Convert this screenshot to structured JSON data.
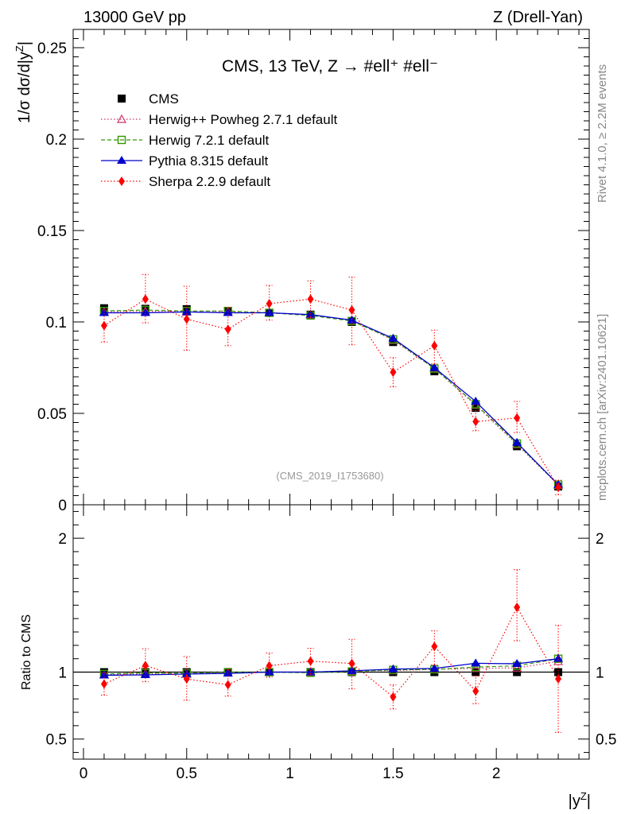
{
  "header": {
    "left": "13000 GeV pp",
    "right": "Z (Drell-Yan)"
  },
  "side": {
    "rivet": "Rivet 4.1.0, ≥ 2.2M events",
    "mcplots": "mcplots.cern.ch [arXiv:2401.10621]"
  },
  "chart_data": {
    "type": "scatter",
    "title": "CMS, 13 TeV, Z →  #ell⁺ #ell⁻",
    "analysis_id": "(CMS_2019_I1753680)",
    "xlabel": "|y^Z|",
    "ylabel": "1/σ dσ/d|y^Z|",
    "ratio_ylabel": "Ratio to CMS",
    "xlim": [
      -0.05,
      2.45
    ],
    "ylim": [
      0,
      0.26
    ],
    "ratio_ylim": [
      0.35,
      2.25
    ],
    "x_ticks": [
      {
        "v": 0,
        "label": "0"
      },
      {
        "v": 0.5,
        "label": "0.5"
      },
      {
        "v": 1,
        "label": "1"
      },
      {
        "v": 1.5,
        "label": "1.5"
      },
      {
        "v": 2,
        "label": "2"
      }
    ],
    "y_ticks": [
      {
        "v": 0,
        "label": "0"
      },
      {
        "v": 0.05,
        "label": "0.05"
      },
      {
        "v": 0.1,
        "label": "0.1"
      },
      {
        "v": 0.15,
        "label": "0.15"
      },
      {
        "v": 0.2,
        "label": "0.2"
      },
      {
        "v": 0.25,
        "label": "0.25"
      }
    ],
    "ratio_ticks": [
      {
        "v": 0.5,
        "label": "0.5"
      },
      {
        "v": 1,
        "label": "1"
      },
      {
        "v": 2,
        "label": "2"
      }
    ],
    "x": [
      0.1,
      0.3,
      0.5,
      0.7,
      0.9,
      1.1,
      1.3,
      1.5,
      1.7,
      1.9,
      2.1,
      2.3
    ],
    "series": [
      {
        "name": "CMS",
        "color": "#000000",
        "marker": "square",
        "line": "none",
        "values": [
          0.1075,
          0.1072,
          0.107,
          0.106,
          0.105,
          0.104,
          0.1,
          0.089,
          0.073,
          0.053,
          0.032,
          0.01
        ]
      },
      {
        "name": "Herwig++ Powheg 2.7.1 default",
        "color": "#cc3366",
        "marker": "triangle-open",
        "line": "dotted",
        "values": [
          0.1055,
          0.1058,
          0.1055,
          0.1055,
          0.105,
          0.104,
          0.101,
          0.09,
          0.0745,
          0.0545,
          0.033,
          0.0108
        ]
      },
      {
        "name": "Herwig 7.2.1 default",
        "color": "#339900",
        "marker": "square-open",
        "line": "dashed",
        "values": [
          0.106,
          0.1065,
          0.106,
          0.106,
          0.105,
          0.1035,
          0.1005,
          0.0905,
          0.0745,
          0.055,
          0.0335,
          0.011
        ]
      },
      {
        "name": "Pythia 8.315 default",
        "color": "#0000cc",
        "marker": "triangle",
        "line": "solid",
        "values": [
          0.105,
          0.105,
          0.1055,
          0.105,
          0.105,
          0.104,
          0.101,
          0.091,
          0.075,
          0.0565,
          0.034,
          0.011
        ]
      },
      {
        "name": "Sherpa 2.2.9 default",
        "color": "#ff0000",
        "marker": "diamond",
        "line": "dotted",
        "values": [
          0.098,
          0.1125,
          0.1015,
          0.096,
          0.11,
          0.1125,
          0.1065,
          0.0725,
          0.087,
          0.0455,
          0.0475,
          0.0095
        ],
        "err_lo": [
          0.009,
          0.013,
          0.017,
          0.009,
          0.009,
          0.01,
          0.019,
          0.008,
          0.01,
          0.005,
          0.008,
          0.004
        ],
        "err_hi": [
          0.009,
          0.0135,
          0.018,
          0.012,
          0.01,
          0.01,
          0.018,
          0.008,
          0.0085,
          0.006,
          0.009,
          0.004
        ]
      }
    ]
  }
}
